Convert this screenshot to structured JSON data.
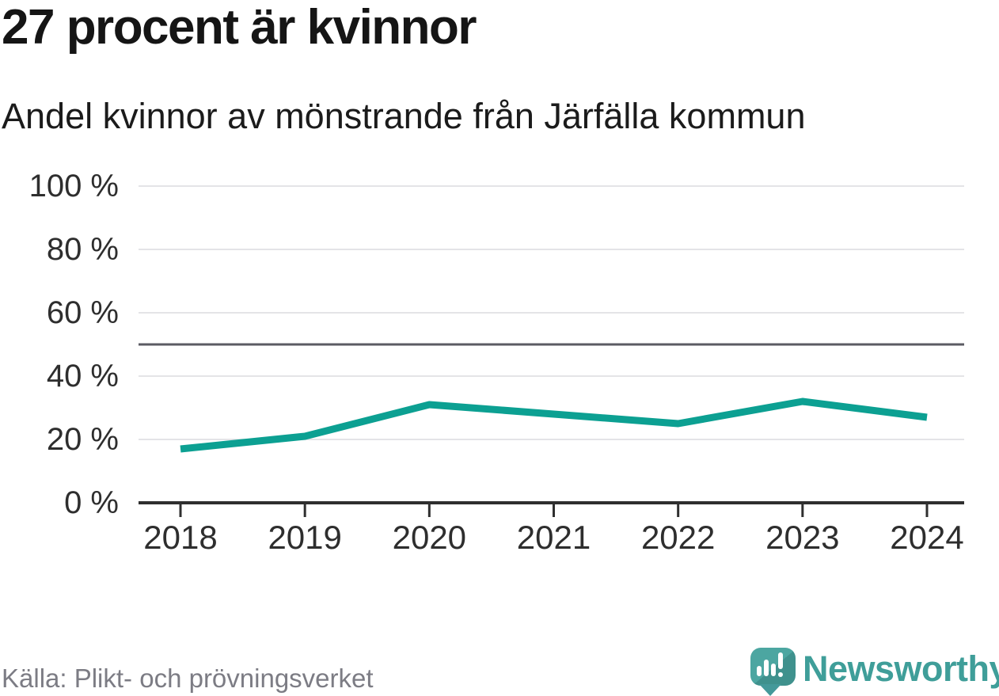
{
  "header": {
    "title": "27 procent är kvinnor",
    "subtitle": "Andel kvinnor av mönstrande från Järfälla kommun"
  },
  "chart_data": {
    "type": "line",
    "title": "27 procent är kvinnor",
    "subtitle": "Andel kvinnor av mönstrande från Järfälla kommun",
    "categories": [
      "2018",
      "2019",
      "2020",
      "2021",
      "2022",
      "2023",
      "2024"
    ],
    "values": [
      17,
      21,
      31,
      28,
      25,
      32,
      27
    ],
    "unit": "%",
    "ylim": [
      0,
      100
    ],
    "yticks": [
      0,
      20,
      40,
      60,
      80,
      100
    ],
    "ytick_labels": [
      "0 %",
      "20 %",
      "40 %",
      "60 %",
      "80 %",
      "100 %"
    ],
    "reference_line": 50,
    "grid": true,
    "legend": "none"
  },
  "footer": {
    "source": "Källa: Plikt- och prövningsverket",
    "brand": "Newsworthy"
  },
  "colors": {
    "line": "#0ca092",
    "reference_line": "#5b5b63",
    "axis": "#2f2f2f",
    "grid": "#e4e4e7",
    "title_text": "#151515",
    "source_text": "#7c7c84",
    "brand_teal": "#3f9e99",
    "logo_bubble": "#4ba6a1"
  }
}
